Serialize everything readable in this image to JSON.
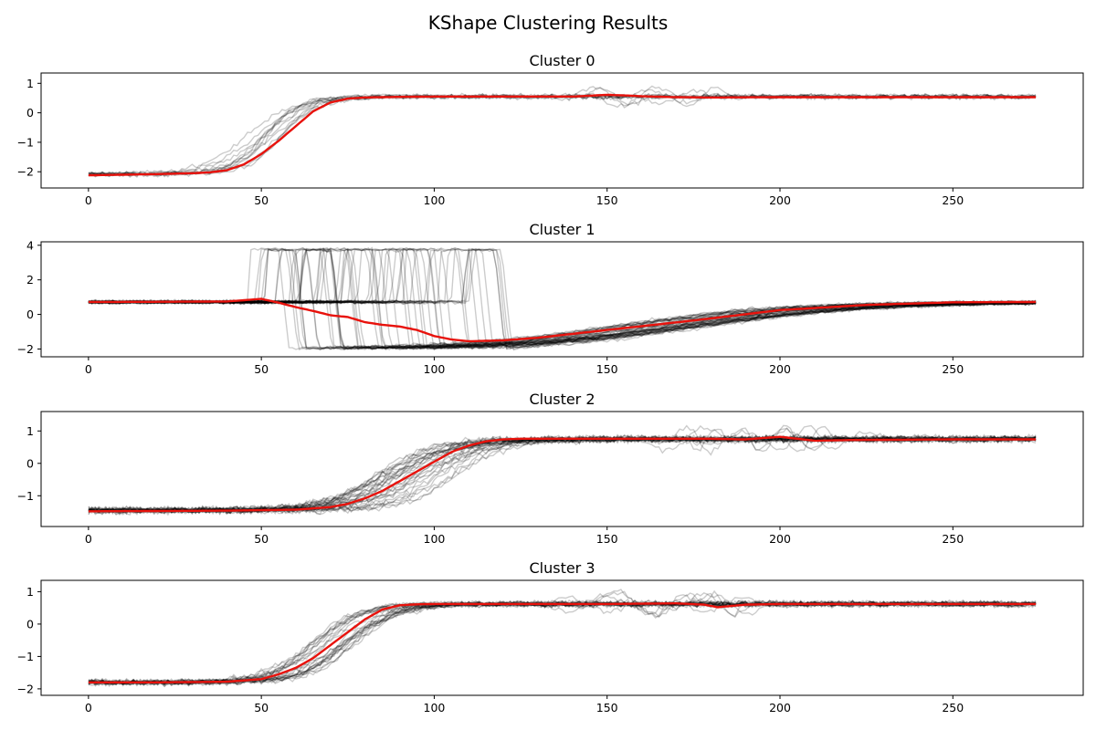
{
  "figure": {
    "title": "KShape Clustering Results"
  },
  "colors": {
    "member": "#000000",
    "centroid": "#e8120c"
  },
  "chart_data": [
    {
      "type": "line",
      "title": "Cluster 0",
      "xlim": [
        -13.7,
        287.7
      ],
      "ylim": [
        -2.55,
        1.35
      ],
      "xticks": [
        0,
        50,
        100,
        150,
        200,
        250
      ],
      "yticks": [
        -2,
        -1,
        0,
        1
      ],
      "series_length": 275,
      "member_count": 12,
      "shape": {
        "low": -2.08,
        "high": 0.55,
        "mid": 52,
        "width": 5.5
      },
      "member_spread": {
        "shift": 6,
        "noise": 0.04
      },
      "perturbation": {
        "start": 142,
        "end": 184,
        "amplitude": 0.45,
        "fraction": 0.5
      },
      "centroid": {
        "x": [
          0,
          10,
          20,
          30,
          35,
          40,
          45,
          50,
          55,
          60,
          65,
          70,
          75,
          80,
          90,
          100,
          140,
          145,
          150,
          155,
          160,
          170,
          180,
          200,
          250,
          274
        ],
        "y": [
          -2.12,
          -2.1,
          -2.08,
          -2.05,
          -2.02,
          -1.95,
          -1.75,
          -1.4,
          -0.95,
          -0.45,
          0.05,
          0.35,
          0.48,
          0.52,
          0.54,
          0.55,
          0.55,
          0.58,
          0.61,
          0.59,
          0.56,
          0.53,
          0.52,
          0.53,
          0.53,
          0.53
        ]
      }
    },
    {
      "type": "line",
      "title": "Cluster 1",
      "xlim": [
        -13.7,
        287.7
      ],
      "ylim": [
        -2.45,
        4.2
      ],
      "xticks": [
        0,
        50,
        100,
        150,
        200,
        250
      ],
      "yticks": [
        -2,
        0,
        2,
        4
      ],
      "series_length": 275,
      "member_count": 45,
      "shape": {
        "pre": 0.72,
        "peak": 3.75,
        "dip": -1.95,
        "spike_start_range": [
          46,
          112
        ],
        "spike_len": 8,
        "drop_len": 3
      },
      "member_spread": {
        "shift": 0,
        "noise": 0.05
      },
      "centroid": {
        "x": [
          0,
          20,
          40,
          45,
          50,
          55,
          60,
          65,
          70,
          75,
          80,
          85,
          90,
          95,
          100,
          105,
          110,
          120,
          130,
          150,
          175,
          200,
          225,
          250,
          274
        ],
        "y": [
          0.72,
          0.73,
          0.75,
          0.82,
          0.9,
          0.68,
          0.42,
          0.2,
          -0.05,
          -0.15,
          -0.45,
          -0.6,
          -0.7,
          -0.9,
          -1.25,
          -1.45,
          -1.55,
          -1.5,
          -1.35,
          -0.9,
          -0.35,
          0.25,
          0.55,
          0.7,
          0.72
        ]
      }
    },
    {
      "type": "line",
      "title": "Cluster 2",
      "xlim": [
        -13.7,
        287.7
      ],
      "ylim": [
        -1.95,
        1.6
      ],
      "xticks": [
        0,
        50,
        100,
        150,
        200,
        250
      ],
      "yticks": [
        -1,
        0,
        1
      ],
      "series_length": 275,
      "member_count": 30,
      "shape": {
        "low": -1.45,
        "high": 0.75,
        "mid": 95,
        "width": 8
      },
      "member_spread": {
        "shift": 12,
        "noise": 0.05
      },
      "perturbation": {
        "start": 172,
        "end": 222,
        "amplitude": 0.45,
        "fraction": 0.55
      },
      "centroid": {
        "x": [
          0,
          20,
          40,
          60,
          70,
          75,
          80,
          85,
          90,
          95,
          100,
          105,
          110,
          115,
          120,
          125,
          130,
          150,
          180,
          190,
          200,
          205,
          210,
          220,
          250,
          274
        ],
        "y": [
          -1.48,
          -1.47,
          -1.46,
          -1.43,
          -1.35,
          -1.25,
          -1.08,
          -0.85,
          -0.55,
          -0.25,
          0.05,
          0.35,
          0.55,
          0.68,
          0.74,
          0.76,
          0.76,
          0.76,
          0.76,
          0.74,
          0.82,
          0.76,
          0.7,
          0.72,
          0.74,
          0.74
        ]
      }
    },
    {
      "type": "line",
      "title": "Cluster 3",
      "xlim": [
        -13.7,
        287.7
      ],
      "ylim": [
        -2.2,
        1.35
      ],
      "xticks": [
        0,
        50,
        100,
        150,
        200,
        250
      ],
      "yticks": [
        -2,
        -1,
        0,
        1
      ],
      "series_length": 275,
      "member_count": 25,
      "shape": {
        "low": -1.8,
        "high": 0.62,
        "mid": 72,
        "width": 6.5
      },
      "member_spread": {
        "shift": 8,
        "noise": 0.045
      },
      "perturbation": {
        "start": 143,
        "end": 192,
        "amplitude": 0.45,
        "fraction": 0.55
      },
      "centroid": {
        "x": [
          0,
          20,
          40,
          50,
          55,
          60,
          65,
          70,
          75,
          80,
          85,
          90,
          95,
          100,
          150,
          160,
          170,
          178,
          182,
          185,
          190,
          200,
          250,
          274
        ],
        "y": [
          -1.8,
          -1.8,
          -1.78,
          -1.7,
          -1.55,
          -1.35,
          -1.05,
          -0.65,
          -0.25,
          0.15,
          0.45,
          0.58,
          0.61,
          0.62,
          0.62,
          0.63,
          0.64,
          0.6,
          0.52,
          0.55,
          0.6,
          0.62,
          0.62,
          0.62
        ]
      }
    }
  ]
}
